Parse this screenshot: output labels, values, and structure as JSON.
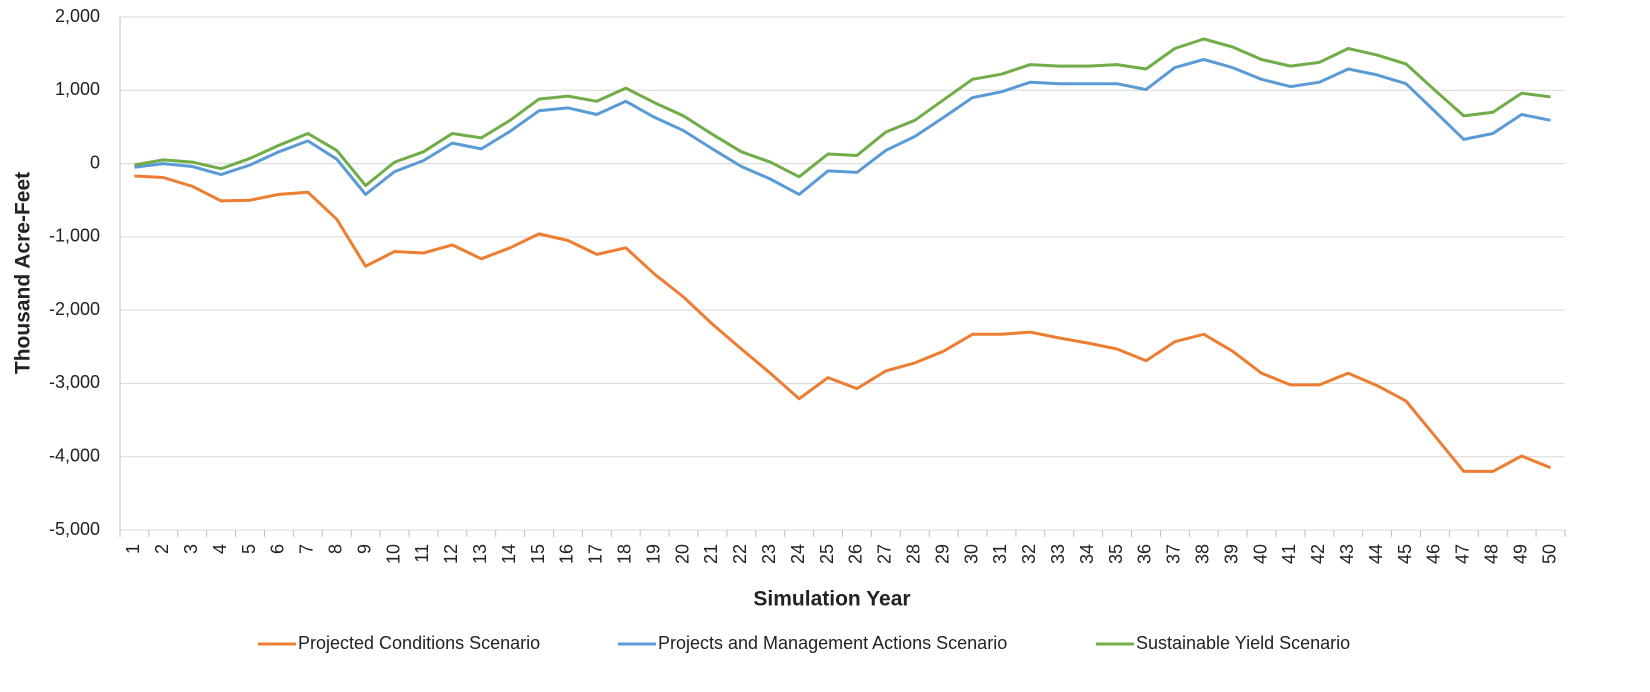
{
  "chart_data": {
    "type": "line",
    "y_label": "Thousand Acre-Feet",
    "x_label": "Simulation Year",
    "categories": [
      "1",
      "2",
      "3",
      "4",
      "5",
      "6",
      "7",
      "8",
      "9",
      "10",
      "11",
      "12",
      "13",
      "14",
      "15",
      "16",
      "17",
      "18",
      "19",
      "20",
      "21",
      "22",
      "23",
      "24",
      "25",
      "26",
      "27",
      "28",
      "29",
      "30",
      "31",
      "32",
      "33",
      "34",
      "35",
      "36",
      "37",
      "38",
      "39",
      "40",
      "41",
      "42",
      "43",
      "44",
      "45",
      "46",
      "47",
      "48",
      "49",
      "50"
    ],
    "series": [
      {
        "name": "Projected Conditions Scenario",
        "color": "#ed7d31",
        "values": [
          -170,
          -190,
          -310,
          -510,
          -500,
          -420,
          -390,
          -760,
          -1400,
          -1200,
          -1220,
          -1110,
          -1300,
          -1150,
          -960,
          -1050,
          -1240,
          -1150,
          -1510,
          -1820,
          -2190,
          -2530,
          -2860,
          -3210,
          -2920,
          -3070,
          -2830,
          -2720,
          -2560,
          -2330,
          -2330,
          -2300,
          -2380,
          -2450,
          -2530,
          -2690,
          -2430,
          -2330,
          -2560,
          -2860,
          -3020,
          -3020,
          -2860,
          -3030,
          -3240,
          -3720,
          -4200,
          -4200,
          -3990,
          -4150
        ]
      },
      {
        "name": "Projects and Management Actions Scenario",
        "color": "#5b9bd5",
        "values": [
          -50,
          0,
          -40,
          -150,
          -20,
          160,
          310,
          60,
          -420,
          -110,
          40,
          280,
          200,
          440,
          720,
          760,
          670,
          850,
          630,
          450,
          200,
          -40,
          -210,
          -420,
          -100,
          -120,
          180,
          370,
          630,
          900,
          980,
          1110,
          1090,
          1090,
          1090,
          1010,
          1310,
          1420,
          1310,
          1150,
          1050,
          1110,
          1290,
          1210,
          1090,
          710,
          330,
          410,
          670,
          590
        ]
      },
      {
        "name": "Sustainable Yield Scenario",
        "color": "#70ad47",
        "values": [
          -20,
          50,
          20,
          -70,
          70,
          250,
          410,
          180,
          -300,
          20,
          160,
          410,
          350,
          590,
          880,
          920,
          850,
          1030,
          830,
          650,
          400,
          160,
          20,
          -180,
          130,
          110,
          430,
          590,
          870,
          1150,
          1220,
          1350,
          1330,
          1330,
          1350,
          1290,
          1570,
          1700,
          1590,
          1420,
          1330,
          1380,
          1570,
          1480,
          1360,
          1000,
          650,
          700,
          960,
          910
        ]
      }
    ],
    "ylim": [
      -5000,
      2000
    ],
    "yticks": [
      {
        "value": -5000,
        "label": "-5,000"
      },
      {
        "value": -4000,
        "label": "-4,000"
      },
      {
        "value": -3000,
        "label": "-3,000"
      },
      {
        "value": -2000,
        "label": "-2,000"
      },
      {
        "value": -1000,
        "label": "-1,000"
      },
      0,
      {
        "value": 1000,
        "label": "1,000"
      },
      {
        "value": 2000,
        "label": "2,000"
      }
    ],
    "grid": true,
    "legend": "bottom"
  }
}
